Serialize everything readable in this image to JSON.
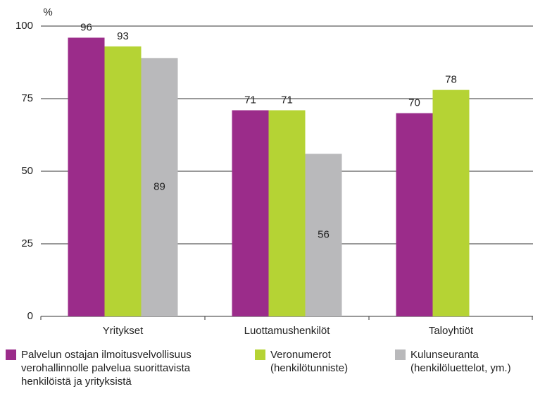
{
  "chart_data": {
    "type": "bar",
    "y_label": "%",
    "categories": [
      "Yritykset",
      "Luottamushenkilöt",
      "Taloyhtiöt"
    ],
    "series": [
      {
        "name": "Palvelun ostajan ilmoitusvelvollisuus verohallinnolle palvelua suorittavista henkilöistä ja yrityksistä",
        "color": "#9b2c8a",
        "values": [
          96,
          71,
          70
        ]
      },
      {
        "name": "Veronumerot (henkilötunniste)",
        "color": "#b5d334",
        "values": [
          93,
          71,
          78
        ]
      },
      {
        "name": "Kulunseuranta (henkilöluettelot, ym.)",
        "color": "#b9b9bb",
        "values": [
          89,
          56,
          null
        ]
      }
    ],
    "ylim": [
      0,
      100
    ],
    "yticks": [
      0,
      25,
      50,
      75,
      100
    ],
    "grid": true
  }
}
